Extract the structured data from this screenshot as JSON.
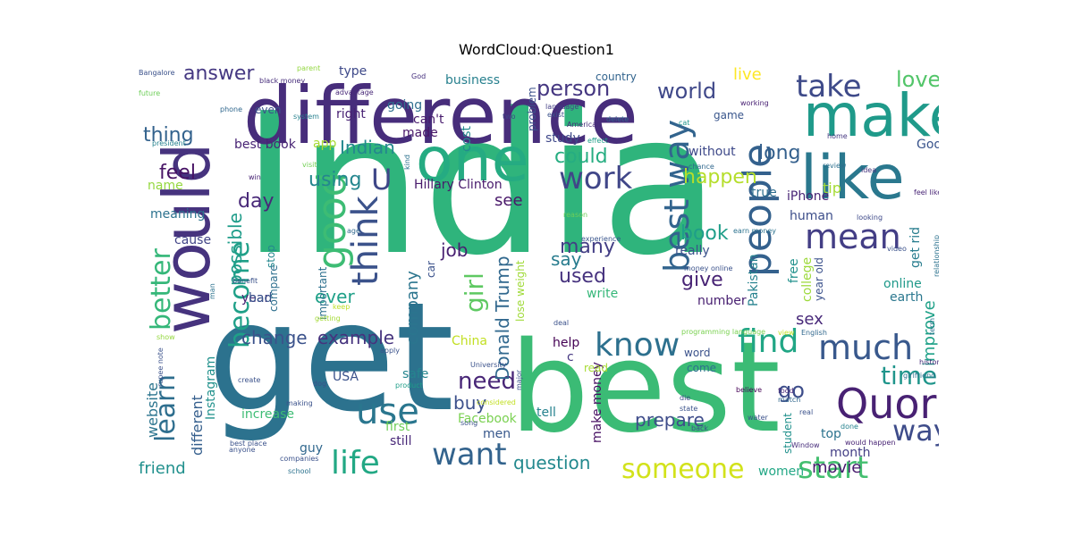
{
  "chart_data": {
    "type": "wordcloud",
    "title": "WordCloud:Question1",
    "words": [
      {
        "text": "India",
        "color": "#2fb47c"
      },
      {
        "text": "get",
        "color": "#2c728e"
      },
      {
        "text": "best",
        "color": "#3bbb75"
      },
      {
        "text": "difference",
        "color": "#472d7b"
      },
      {
        "text": "would",
        "color": "#46337e"
      },
      {
        "text": "one",
        "color": "#25ab82"
      },
      {
        "text": "make",
        "color": "#1f9a8a"
      },
      {
        "text": "like",
        "color": "#2a788e"
      },
      {
        "text": "good",
        "color": "#3dbc74"
      },
      {
        "text": "think",
        "color": "#3b528b"
      },
      {
        "text": "people",
        "color": "#34618d"
      },
      {
        "text": "mean",
        "color": "#433e85"
      },
      {
        "text": "Quora",
        "color": "#482173"
      },
      {
        "text": "best way",
        "color": "#32648e"
      },
      {
        "text": "know",
        "color": "#2d708e"
      },
      {
        "text": "much",
        "color": "#38588c"
      },
      {
        "text": "find",
        "color": "#21a685"
      },
      {
        "text": "take",
        "color": "#3e4a89"
      },
      {
        "text": "work",
        "color": "#404688"
      },
      {
        "text": "life",
        "color": "#22a884"
      },
      {
        "text": "want",
        "color": "#33638d"
      },
      {
        "text": "use",
        "color": "#2a768e"
      },
      {
        "text": "someone",
        "color": "#d2e21b"
      },
      {
        "text": "start",
        "color": "#44bf70"
      },
      {
        "text": "way",
        "color": "#3e4c8a"
      },
      {
        "text": "time",
        "color": "#1f958b"
      },
      {
        "text": "U",
        "color": "#3f4788"
      },
      {
        "text": "better",
        "color": "#35b779"
      },
      {
        "text": "learn",
        "color": "#2e6e8e"
      },
      {
        "text": "become",
        "color": "#1fa088"
      },
      {
        "text": "girl",
        "color": "#5ec962"
      },
      {
        "text": "need",
        "color": "#482677"
      },
      {
        "text": "go",
        "color": "#3d4d8a"
      },
      {
        "text": "love",
        "color": "#52c569"
      },
      {
        "text": "world",
        "color": "#3f4889"
      },
      {
        "text": "person",
        "color": "#453781"
      },
      {
        "text": "answer",
        "color": "#453882"
      },
      {
        "text": "thing",
        "color": "#33628d"
      },
      {
        "text": "feel",
        "color": "#471365"
      },
      {
        "text": "using",
        "color": "#24868e"
      },
      {
        "text": "day",
        "color": "#482878"
      },
      {
        "text": "possible",
        "color": "#1e9c89"
      },
      {
        "text": "Indian",
        "color": "#24878e"
      },
      {
        "text": "could",
        "color": "#26ad81"
      },
      {
        "text": "happen",
        "color": "#b5de2b"
      },
      {
        "text": "long",
        "color": "#34608d"
      },
      {
        "text": "book",
        "color": "#1f9e89"
      },
      {
        "text": "many",
        "color": "#433e85"
      },
      {
        "text": "used",
        "color": "#46327e"
      },
      {
        "text": "give",
        "color": "#482475"
      },
      {
        "text": "say",
        "color": "#287c8e"
      },
      {
        "text": "job",
        "color": "#482071"
      },
      {
        "text": "ever",
        "color": "#1fa088"
      },
      {
        "text": "change",
        "color": "#3b528b"
      },
      {
        "text": "example",
        "color": "#46337e"
      },
      {
        "text": "company",
        "color": "#2b758e"
      },
      {
        "text": "Donald Trump",
        "color": "#31688e"
      },
      {
        "text": "Hillary Clinton",
        "color": "#481a6c"
      },
      {
        "text": "see",
        "color": "#481769"
      },
      {
        "text": "buy",
        "color": "#3c508b"
      },
      {
        "text": "prepare",
        "color": "#3e4c8a"
      },
      {
        "text": "question",
        "color": "#23898e"
      },
      {
        "text": "movie",
        "color": "#481c6e"
      },
      {
        "text": "friend",
        "color": "#21908d"
      },
      {
        "text": "website",
        "color": "#2b748e"
      },
      {
        "text": "different",
        "color": "#355f8d"
      },
      {
        "text": "Instagram",
        "color": "#21918c"
      },
      {
        "text": "improve",
        "color": "#1fa188"
      },
      {
        "text": "sex",
        "color": "#482979"
      },
      {
        "text": "live",
        "color": "#fde725"
      },
      {
        "text": "tip",
        "color": "#a5db36"
      },
      {
        "text": "iPhone",
        "color": "#482475"
      },
      {
        "text": "Google",
        "color": "#3a548c"
      },
      {
        "text": "Pakistan",
        "color": "#26828e"
      },
      {
        "text": "online",
        "color": "#1f998a"
      },
      {
        "text": "earth",
        "color": "#2a778e"
      },
      {
        "text": "China",
        "color": "#c2df23"
      },
      {
        "text": "Facebook",
        "color": "#7ad151"
      },
      {
        "text": "USA",
        "color": "#3b528b"
      },
      {
        "text": "safe",
        "color": "#25858e"
      },
      {
        "text": "increase",
        "color": "#3dbc74"
      },
      {
        "text": "guy",
        "color": "#31688e"
      },
      {
        "text": "men",
        "color": "#38588c"
      },
      {
        "text": "women",
        "color": "#22a785"
      },
      {
        "text": "month",
        "color": "#433e85"
      },
      {
        "text": "top",
        "color": "#2c738e"
      },
      {
        "text": "student",
        "color": "#21918c"
      },
      {
        "text": "make money",
        "color": "#471063"
      },
      {
        "text": "tell",
        "color": "#26828e"
      },
      {
        "text": "first",
        "color": "#6ece58"
      },
      {
        "text": "still",
        "color": "#482878"
      },
      {
        "text": "help",
        "color": "#440154"
      },
      {
        "text": "c",
        "color": "#453781"
      },
      {
        "text": "read",
        "color": "#a8db34"
      },
      {
        "text": "word",
        "color": "#3b528b"
      },
      {
        "text": "come",
        "color": "#2d708e"
      },
      {
        "text": "number",
        "color": "#482071"
      },
      {
        "text": "really",
        "color": "#3b528b"
      },
      {
        "text": "without",
        "color": "#3e4989"
      },
      {
        "text": "human",
        "color": "#3d4e8a"
      },
      {
        "text": "true",
        "color": "#2e6e8e"
      },
      {
        "text": "free",
        "color": "#21918c"
      },
      {
        "text": "college",
        "color": "#9dd93b"
      },
      {
        "text": "year old",
        "color": "#3b518b"
      },
      {
        "text": "year",
        "color": "#482173"
      },
      {
        "text": "bad",
        "color": "#39558c"
      },
      {
        "text": "cause",
        "color": "#414487"
      },
      {
        "text": "meaning",
        "color": "#2c728e"
      },
      {
        "text": "name",
        "color": "#95d840"
      },
      {
        "text": "compare",
        "color": "#2e6f8e"
      },
      {
        "text": "stop",
        "color": "#24878e"
      },
      {
        "text": "important",
        "color": "#2d708e"
      },
      {
        "text": "lose weight",
        "color": "#a0da39"
      },
      {
        "text": "write",
        "color": "#35b779"
      },
      {
        "text": "best book",
        "color": "#482475"
      },
      {
        "text": "app",
        "color": "#a8db34"
      },
      {
        "text": "study",
        "color": "#3f4889"
      },
      {
        "text": "made",
        "color": "#481668"
      },
      {
        "text": "right",
        "color": "#482173"
      },
      {
        "text": "can't",
        "color": "#481b6d"
      },
      {
        "text": "going",
        "color": "#2e6e8e"
      },
      {
        "text": "type",
        "color": "#3e4989"
      },
      {
        "text": "business",
        "color": "#27808e"
      },
      {
        "text": "cost",
        "color": "#238a8d"
      },
      {
        "text": "problem",
        "color": "#3b528b"
      },
      {
        "text": "country",
        "color": "#32648e"
      },
      {
        "text": "game",
        "color": "#39568c"
      },
      {
        "text": "car",
        "color": "#3b528b"
      },
      {
        "text": "even",
        "color": "#3b528b"
      },
      {
        "text": "phone",
        "color": "#31688e"
      },
      {
        "text": "system",
        "color": "#27808e"
      },
      {
        "text": "two",
        "color": "#414487"
      },
      {
        "text": "exist",
        "color": "#3b528b"
      },
      {
        "text": "American",
        "color": "#472c7a"
      },
      {
        "text": "delete",
        "color": "#31688e"
      },
      {
        "text": "cat",
        "color": "#1f968b"
      },
      {
        "text": "language",
        "color": "#433e85"
      },
      {
        "text": "working",
        "color": "#482173"
      },
      {
        "text": "effect",
        "color": "#1f9e89"
      },
      {
        "text": "home",
        "color": "#453781"
      },
      {
        "text": "review",
        "color": "#2d708e"
      },
      {
        "text": "idea",
        "color": "#46337e"
      },
      {
        "text": "chance",
        "color": "#31688e"
      },
      {
        "text": "visit",
        "color": "#73d056"
      },
      {
        "text": "kind",
        "color": "#2c728e"
      },
      {
        "text": "win",
        "color": "#482475"
      },
      {
        "text": "president",
        "color": "#26828e"
      },
      {
        "text": "future",
        "color": "#6ece58"
      },
      {
        "text": "Bangalore",
        "color": "#3b528b"
      },
      {
        "text": "parent",
        "color": "#93d741"
      },
      {
        "text": "black money",
        "color": "#472d7b"
      },
      {
        "text": "advantage",
        "color": "#482878"
      },
      {
        "text": "God",
        "color": "#46307e"
      },
      {
        "text": "age",
        "color": "#31688e"
      },
      {
        "text": "keep",
        "color": "#bddf26"
      },
      {
        "text": "getting",
        "color": "#a5db36"
      },
      {
        "text": "money online",
        "color": "#3b528b"
      },
      {
        "text": "earn money",
        "color": "#2c728e"
      },
      {
        "text": "looking",
        "color": "#3e4989"
      },
      {
        "text": "video",
        "color": "#3b528b"
      },
      {
        "text": "feel like",
        "color": "#482475"
      },
      {
        "text": "relationship",
        "color": "#2c728e"
      },
      {
        "text": "get rid",
        "color": "#287d8e"
      },
      {
        "text": "history",
        "color": "#472c7a"
      },
      {
        "text": "girlfriend",
        "color": "#2c728e"
      },
      {
        "text": "English",
        "color": "#31688e"
      },
      {
        "text": "view",
        "color": "#c2df23"
      },
      {
        "text": "term",
        "color": "#2c728e"
      },
      {
        "text": "experience",
        "color": "#39558c"
      },
      {
        "text": "reason",
        "color": "#6ece58"
      },
      {
        "text": "food",
        "color": "#482878"
      },
      {
        "text": "match",
        "color": "#31688e"
      },
      {
        "text": "believe",
        "color": "#440154"
      },
      {
        "text": "water",
        "color": "#3b528b"
      },
      {
        "text": "real",
        "color": "#3b528b"
      },
      {
        "text": "done",
        "color": "#26828e"
      },
      {
        "text": "would happen",
        "color": "#482475"
      },
      {
        "text": "Window",
        "color": "#472d7b"
      },
      {
        "text": "back",
        "color": "#3b528b"
      },
      {
        "text": "state",
        "color": "#3b528b"
      },
      {
        "text": "die",
        "color": "#3e4989"
      },
      {
        "text": "deal",
        "color": "#3b528b"
      },
      {
        "text": "programming language",
        "color": "#7ad151"
      },
      {
        "text": "product",
        "color": "#1f9e89"
      },
      {
        "text": "considered",
        "color": "#c2df23"
      },
      {
        "text": "University",
        "color": "#3b528b"
      },
      {
        "text": "major",
        "color": "#3b528b"
      },
      {
        "text": "song",
        "color": "#3b528b"
      },
      {
        "text": "dog",
        "color": "#3b528b"
      },
      {
        "text": "making",
        "color": "#3b528b"
      },
      {
        "text": "create",
        "color": "#3b528b"
      },
      {
        "text": "apply",
        "color": "#3b528b"
      },
      {
        "text": "best place",
        "color": "#3b528b"
      },
      {
        "text": "anyone",
        "color": "#3b528b"
      },
      {
        "text": "companies",
        "color": "#3b528b"
      },
      {
        "text": "school",
        "color": "#2c728e"
      },
      {
        "text": "show",
        "color": "#95d840"
      },
      {
        "text": "rupee note",
        "color": "#3b528b"
      },
      {
        "text": "benefit",
        "color": "#3b528b"
      },
      {
        "text": "man",
        "color": "#2c728e"
      }
    ]
  }
}
